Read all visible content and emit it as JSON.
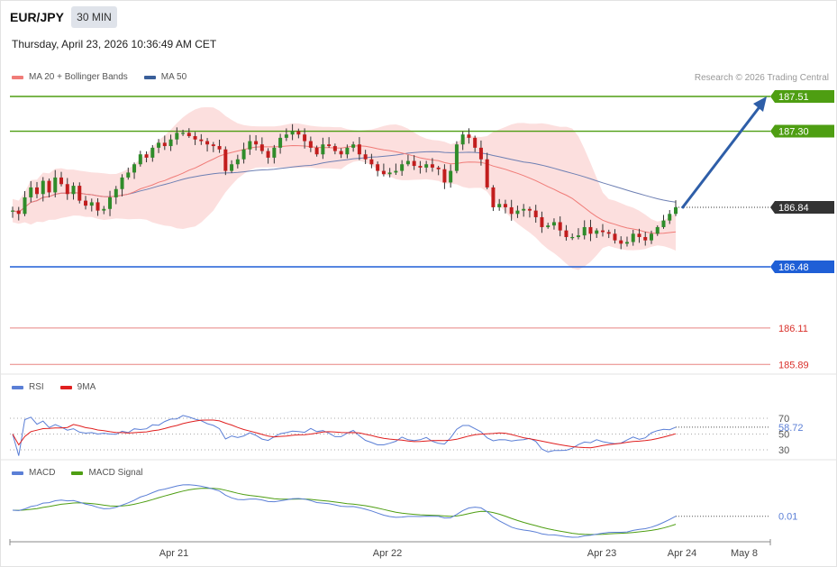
{
  "header": {
    "symbol": "EUR/JPY",
    "timeframe": "30 MIN",
    "datetime": "Thursday, April 23, 2026 10:36:49 AM CET",
    "credit": "Research © 2026 Trading Central"
  },
  "legends": {
    "price": [
      {
        "label": "MA 20 + Bollinger Bands",
        "color": "#f07c78"
      },
      {
        "label": "MA 50",
        "color": "#3a5f9a"
      }
    ],
    "rsi": [
      {
        "label": "RSI",
        "color": "#5b7fd6"
      },
      {
        "label": "9MA",
        "color": "#e01f1f"
      }
    ],
    "macd": [
      {
        "label": "MACD",
        "color": "#5b7fd6"
      },
      {
        "label": "MACD Signal",
        "color": "#4e9e12"
      }
    ]
  },
  "chart_data": [
    {
      "type": "candlestick",
      "panel": "price",
      "x_ticks": [
        "Apr 21",
        "Apr 22",
        "Apr 23",
        "Apr 24",
        "May 8"
      ],
      "ylim": [
        185.85,
        187.55
      ],
      "levels": [
        {
          "label": "187.51",
          "value": 187.51,
          "kind": "resistance",
          "color": "#4e9e12"
        },
        {
          "label": "187.30",
          "value": 187.3,
          "kind": "resistance",
          "color": "#4e9e12"
        },
        {
          "label": "186.84",
          "value": 186.84,
          "kind": "last",
          "color": "#333333"
        },
        {
          "label": "186.48",
          "value": 186.48,
          "kind": "pivot",
          "color": "#1f5fd6"
        },
        {
          "label": "186.11",
          "value": 186.11,
          "kind": "support",
          "color": "#d9312b"
        },
        {
          "label": "185.89",
          "value": 185.89,
          "kind": "support",
          "color": "#d9312b"
        }
      ],
      "close": [
        186.82,
        186.8,
        186.9,
        186.96,
        186.92,
        187.0,
        186.93,
        187.02,
        186.98,
        186.92,
        186.97,
        186.88,
        186.85,
        186.87,
        186.82,
        186.83,
        186.9,
        186.95,
        187.02,
        187.05,
        187.1,
        187.16,
        187.14,
        187.2,
        187.23,
        187.21,
        187.25,
        187.29,
        187.29,
        187.27,
        187.25,
        187.24,
        187.22,
        187.21,
        187.19,
        187.06,
        187.1,
        187.13,
        187.19,
        187.24,
        187.22,
        187.18,
        187.14,
        187.2,
        187.26,
        187.28,
        187.3,
        187.28,
        187.24,
        187.2,
        187.16,
        187.22,
        187.21,
        187.18,
        187.16,
        187.2,
        187.22,
        187.16,
        187.13,
        187.1,
        187.06,
        187.04,
        187.05,
        187.06,
        187.1,
        187.12,
        187.09,
        187.08,
        187.1,
        187.08,
        187.07,
        186.99,
        187.06,
        187.22,
        187.28,
        187.26,
        187.2,
        187.13,
        186.96,
        186.84,
        186.86,
        186.84,
        186.8,
        186.82,
        186.83,
        186.82,
        186.78,
        186.72,
        186.73,
        186.75,
        186.7,
        186.66,
        186.66,
        186.67,
        186.72,
        186.68,
        186.7,
        186.69,
        186.68,
        186.64,
        186.62,
        186.63,
        186.68,
        186.66,
        186.64,
        186.68,
        186.72,
        186.76,
        186.8,
        186.84
      ]
    },
    {
      "type": "line",
      "panel": "rsi",
      "y_ticks": [
        "70",
        "50",
        "30"
      ],
      "last_value_label": "58.72",
      "series": [
        {
          "name": "RSI",
          "last": 58.72
        },
        {
          "name": "9MA"
        }
      ]
    },
    {
      "type": "line",
      "panel": "macd",
      "last_value_label": "0.01",
      "series": [
        {
          "name": "MACD",
          "last": 0.01
        },
        {
          "name": "MACD Signal"
        }
      ]
    }
  ]
}
